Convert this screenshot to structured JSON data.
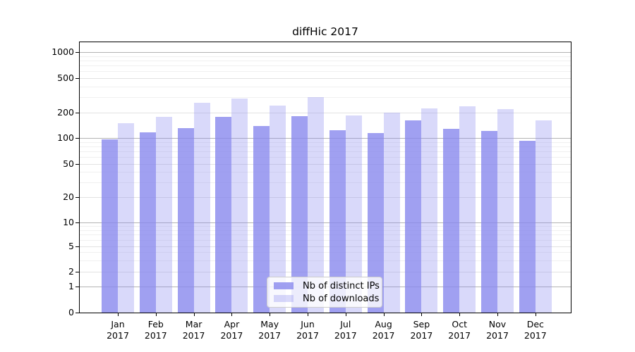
{
  "title": "diffHic 2017",
  "legend": {
    "items": [
      {
        "label": "Nb of distinct IPs"
      },
      {
        "label": "Nb of downloads"
      }
    ]
  },
  "colors": {
    "bar_base": "#8888ee",
    "ips_fill": "rgba(136,136,238,0.8)",
    "downloads_fill": "rgba(136,136,238,0.32)",
    "grid_decade": "#b3b3b3",
    "grid_minor": "#f0f0f0"
  },
  "y_axis": {
    "tick_labels": [
      "0",
      "1",
      "2",
      "5",
      "10",
      "20",
      "50",
      "100",
      "200",
      "500",
      "1000"
    ]
  },
  "x_axis": {
    "months": [
      "Jan",
      "Feb",
      "Mar",
      "Apr",
      "May",
      "Jun",
      "Jul",
      "Aug",
      "Sep",
      "Oct",
      "Nov",
      "Dec"
    ],
    "year": "2017"
  },
  "chart_data": {
    "type": "bar",
    "title": "diffHic 2017",
    "categories": [
      "Jan 2017",
      "Feb 2017",
      "Mar 2017",
      "Apr 2017",
      "May 2017",
      "Jun 2017",
      "Jul 2017",
      "Aug 2017",
      "Sep 2017",
      "Oct 2017",
      "Nov 2017",
      "Dec 2017"
    ],
    "series": [
      {
        "name": "Nb of distinct IPs",
        "values": [
          97,
          118,
          131,
          179,
          140,
          180,
          123,
          116,
          161,
          129,
          121,
          94
        ]
      },
      {
        "name": "Nb of downloads",
        "values": [
          150,
          178,
          258,
          289,
          242,
          301,
          185,
          200,
          224,
          236,
          220,
          161
        ]
      }
    ],
    "y_ticks": [
      0,
      1,
      2,
      5,
      10,
      20,
      50,
      100,
      200,
      500,
      1000
    ],
    "y_scale": "log-like (symlog, 0 at baseline)",
    "ylim": [
      0,
      1300
    ],
    "xlabel": "",
    "ylabel": "",
    "grid": true,
    "legend_position": "lower center"
  }
}
